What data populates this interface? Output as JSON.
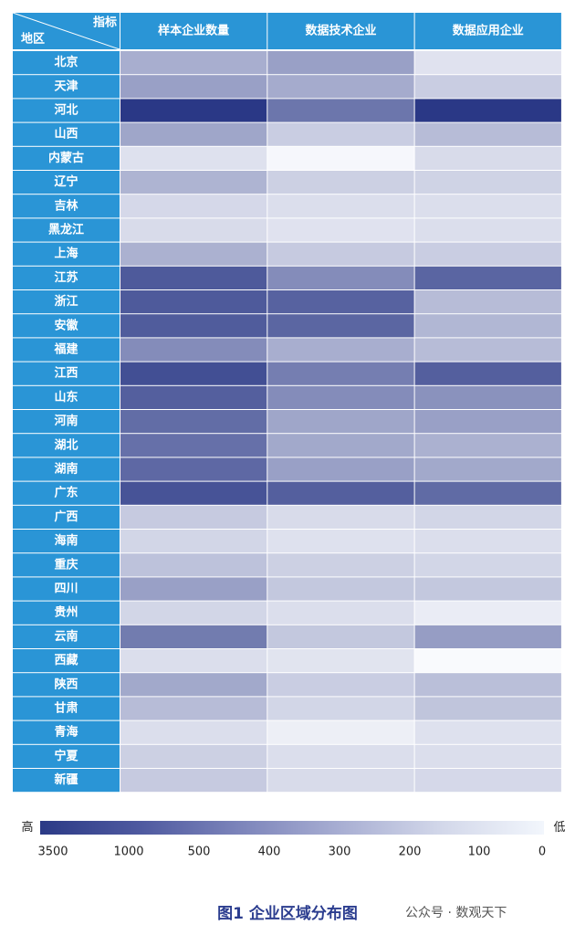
{
  "chart_data": {
    "type": "heatmap",
    "corner_top": "指标",
    "corner_bottom": "地区",
    "columns": [
      "样本企业数量",
      "数据技术企业",
      "数据应用企业"
    ],
    "rows": [
      {
        "region": "北京",
        "values": [
          280,
          330,
          95
        ]
      },
      {
        "region": "天津",
        "values": [
          330,
          290,
          170
        ]
      },
      {
        "region": "河北",
        "values": [
          3500,
          480,
          3500
        ]
      },
      {
        "region": "山西",
        "values": [
          310,
          170,
          230
        ]
      },
      {
        "region": "内蒙古",
        "values": [
          100,
          20,
          120
        ]
      },
      {
        "region": "辽宁",
        "values": [
          260,
          160,
          150
        ]
      },
      {
        "region": "吉林",
        "values": [
          130,
          110,
          110
        ]
      },
      {
        "region": "黑龙江",
        "values": [
          120,
          95,
          110
        ]
      },
      {
        "region": "上海",
        "values": [
          270,
          180,
          170
        ]
      },
      {
        "region": "江苏",
        "values": [
          900,
          400,
          700
        ]
      },
      {
        "region": "浙江",
        "values": [
          900,
          750,
          230
        ]
      },
      {
        "region": "安徽",
        "values": [
          860,
          680,
          250
        ]
      },
      {
        "region": "福建",
        "values": [
          400,
          280,
          230
        ]
      },
      {
        "region": "江西",
        "values": [
          1500,
          450,
          800
        ]
      },
      {
        "region": "山东",
        "values": [
          800,
          400,
          380
        ]
      },
      {
        "region": "河南",
        "values": [
          560,
          310,
          330
        ]
      },
      {
        "region": "湖北",
        "values": [
          500,
          300,
          270
        ]
      },
      {
        "region": "湖南",
        "values": [
          640,
          330,
          300
        ]
      },
      {
        "region": "广东",
        "values": [
          1100,
          800,
          600
        ]
      },
      {
        "region": "广西",
        "values": [
          180,
          120,
          140
        ]
      },
      {
        "region": "海南",
        "values": [
          140,
          100,
          110
        ]
      },
      {
        "region": "重庆",
        "values": [
          210,
          160,
          140
        ]
      },
      {
        "region": "四川",
        "values": [
          330,
          190,
          190
        ]
      },
      {
        "region": "贵州",
        "values": [
          140,
          110,
          60
        ]
      },
      {
        "region": "云南",
        "values": [
          460,
          190,
          340
        ]
      },
      {
        "region": "西藏",
        "values": [
          110,
          90,
          10
        ]
      },
      {
        "region": "陕西",
        "values": [
          300,
          170,
          220
        ]
      },
      {
        "region": "甘肃",
        "values": [
          230,
          140,
          200
        ]
      },
      {
        "region": "青海",
        "values": [
          110,
          50,
          100
        ]
      },
      {
        "region": "宁夏",
        "values": [
          160,
          110,
          110
        ]
      },
      {
        "region": "新疆",
        "values": [
          180,
          120,
          130
        ]
      }
    ],
    "legend": {
      "high_label": "高",
      "low_label": "低",
      "ticks": [
        "3500",
        "1000",
        "500",
        "400",
        "300",
        "200",
        "100",
        "0"
      ],
      "colors": [
        "#2b3a86",
        "#4f5aa0",
        "#7d85bb",
        "#a9afd3",
        "#d3d8ea",
        "#f2f6fc"
      ]
    },
    "colors": {
      "header": "#2a95d6",
      "border": "#ffffff"
    }
  },
  "caption": "图1 企业区域分布图",
  "watermark": "公众号 · 数观天下"
}
